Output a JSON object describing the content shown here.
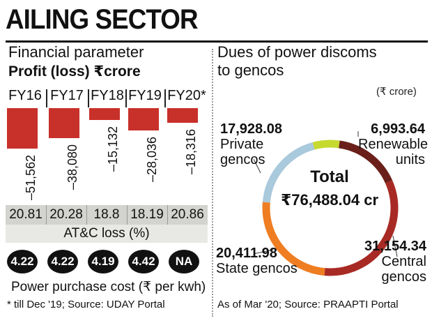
{
  "header": {
    "title": "AILING SECTOR"
  },
  "left": {
    "subtitle": "Financial parameter",
    "metric": "Profit (loss) ₹crore",
    "years": [
      "FY16",
      "FY17",
      "FY18",
      "FY19",
      "FY20*"
    ],
    "atc_values": [
      "20.81",
      "20.28",
      "18.8",
      "18.19",
      "20.86"
    ],
    "atc_title": "AT&C loss (%)",
    "ppc_values": [
      "4.22",
      "4.22",
      "4.19",
      "4.42",
      "NA"
    ],
    "ppc_title": "Power purchase cost (₹ per kwh)",
    "footnote": "* till Dec '19; Source: UDAY Portal"
  },
  "right": {
    "title_line1": "Dues of power discoms",
    "title_line2": "to gencos",
    "unit": "(₹ crore)",
    "total_label": "Total",
    "total_value": "₹76,488.04 cr",
    "footnote": "As of Mar '20; Source: PRAAPTI Portal"
  },
  "chart_data": [
    {
      "type": "bar",
      "title": "Financial parameter",
      "ylabel": "Profit (loss) ₹crore",
      "categories": [
        "FY16",
        "FY17",
        "FY18",
        "FY19",
        "FY20*"
      ],
      "values": [
        -51562,
        -38080,
        -15132,
        -28036,
        -18316
      ],
      "value_labels": [
        "–51,562",
        "–38,080",
        "–15,132",
        "–28,036",
        "–18,316"
      ],
      "color": "#c8302a"
    },
    {
      "type": "pie",
      "title": "Dues of power discoms to gencos",
      "unit": "(₹ crore)",
      "slices": [
        {
          "name": "Renewable units",
          "value": 6993.64,
          "label": "6,993.64",
          "color": "#6b1f1a"
        },
        {
          "name": "Central gencos",
          "value": 31154.34,
          "label": "31,154.34",
          "color": "#a82a24"
        },
        {
          "name": "State gencos",
          "value": 20411.98,
          "label": "20,411.98",
          "color": "#ef7d22"
        },
        {
          "name": "Private gencos",
          "value": 17928.08,
          "label": "17,928.08",
          "color": "#a9c9dc"
        },
        {
          "name": "",
          "value": 0,
          "label": "",
          "color": "#c6d92f"
        }
      ]
    }
  ]
}
